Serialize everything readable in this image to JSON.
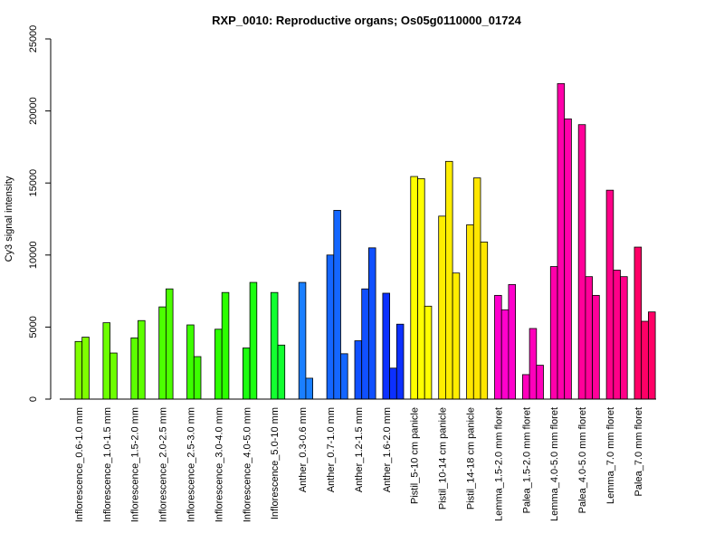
{
  "chart_data": {
    "type": "bar",
    "title": "RXP_0010: Reproductive organs; Os05g0110000_01724",
    "xlabel": "",
    "ylabel": "Cy3 signal intensity",
    "ylim": [
      0,
      25000
    ],
    "yticks": [
      0,
      5000,
      10000,
      15000,
      20000,
      25000
    ],
    "grid": false,
    "legend": "none",
    "groups": [
      {
        "label": "Inflorescence_0.6-1.0 mm",
        "color": "#7fff00",
        "values": [
          4000,
          4300
        ]
      },
      {
        "label": "Inflorescence_1.0-1.5 mm",
        "color": "#6cff00",
        "values": [
          5300,
          3200
        ]
      },
      {
        "label": "Inflorescence_1.5-2.0 mm",
        "color": "#5cff00",
        "values": [
          4250,
          5450
        ]
      },
      {
        "label": "Inflorescence_2.0-2.5 mm",
        "color": "#4cff00",
        "values": [
          6400,
          7650
        ]
      },
      {
        "label": "Inflorescence_2.5-3.0 mm",
        "color": "#3cff00",
        "values": [
          5150,
          2950
        ]
      },
      {
        "label": "Inflorescence_3.0-4.0 mm",
        "color": "#2cff00",
        "values": [
          4850,
          7400
        ]
      },
      {
        "label": "Inflorescence_4.0-5.0 mm",
        "color": "#1cff10",
        "values": [
          3550,
          8100
        ]
      },
      {
        "label": "Inflorescence_5.0-10 mm",
        "color": "#12ff30",
        "values": [
          7400,
          3750
        ]
      },
      {
        "label": "Anther_0.3-0.6 mm",
        "color": "#1a7fff",
        "values": [
          8100,
          1450
        ]
      },
      {
        "label": "Anther_0.7-1.0 mm",
        "color": "#1466ff",
        "values": [
          10000,
          13100,
          3150
        ]
      },
      {
        "label": "Anther_1.2-1.5 mm",
        "color": "#1050ff",
        "values": [
          4050,
          7650,
          10500
        ]
      },
      {
        "label": "Anther_1.6-2.0 mm",
        "color": "#0c30ff",
        "values": [
          7350,
          2150,
          5200
        ]
      },
      {
        "label": "Pistil_5-10 cm panicle",
        "color": "#ffff00",
        "values": [
          15450,
          15300,
          6450
        ]
      },
      {
        "label": "Pistil_10-14 cm panicle",
        "color": "#ffee00",
        "values": [
          12700,
          16500,
          8750
        ]
      },
      {
        "label": "Pistil_14-18 cm panicle",
        "color": "#ffe600",
        "values": [
          12100,
          15350,
          10900
        ]
      },
      {
        "label": "Lemma_1.5-2.0 mm floret",
        "color": "#ff00cc",
        "values": [
          7200,
          6200,
          7950
        ]
      },
      {
        "label": "Palea_1.5-2.0 mm floret",
        "color": "#ff00bb",
        "values": [
          1700,
          4900,
          2350
        ]
      },
      {
        "label": "Lemma_4.0-5.0 mm floret",
        "color": "#ff00aa",
        "values": [
          9200,
          21900,
          19450
        ]
      },
      {
        "label": "Palea_4.0-5.0 mm floret",
        "color": "#ff0099",
        "values": [
          19050,
          8500,
          7200
        ]
      },
      {
        "label": "Lemma_7.0 mm floret",
        "color": "#ff0088",
        "values": [
          14500,
          8950,
          8500
        ]
      },
      {
        "label": "Palea_7.0 mm floret",
        "color": "#ff0066",
        "values": [
          10550,
          5400,
          6050
        ]
      }
    ]
  }
}
